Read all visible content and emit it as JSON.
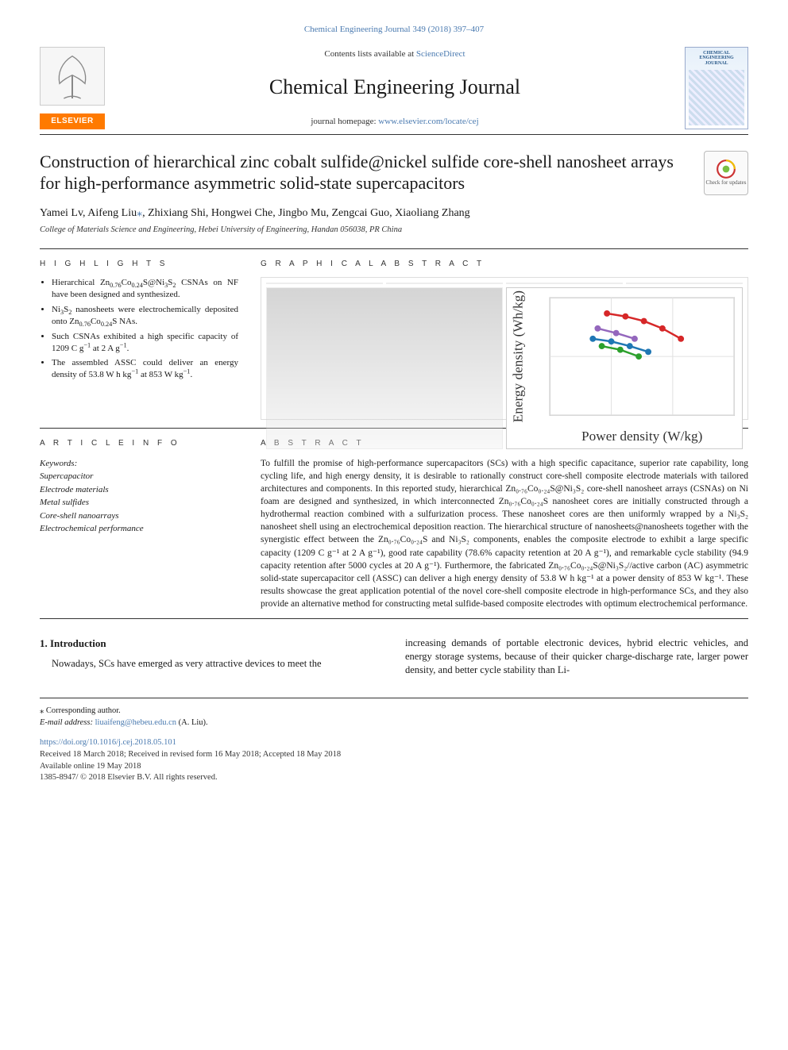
{
  "top_citation": "Chemical Engineering Journal 349 (2018) 397–407",
  "masthead": {
    "contents_prefix": "Contents lists available at ",
    "contents_link": "ScienceDirect",
    "journal_name": "Chemical Engineering Journal",
    "homepage_prefix": "journal homepage: ",
    "homepage_url": "www.elsevier.com/locate/cej",
    "publisher_word": "ELSEVIER",
    "cover_text": "CHEMICAL ENGINEERING JOURNAL"
  },
  "check_updates_label": "Check for updates",
  "title": "Construction of hierarchical zinc cobalt sulfide@nickel sulfide core-shell nanosheet arrays for high-performance asymmetric solid-state supercapacitors",
  "authors_html": "Yamei Lv, Aifeng Liu<a class='corr-link' href='#'>⁎</a>, Zhixiang Shi, Hongwei Che, Jingbo Mu, Zengcai Guo, Xiaoliang Zhang",
  "affiliation": "College of Materials Science and Engineering, Hebei University of Engineering, Handan 056038, PR China",
  "labels": {
    "highlights": "H I G H L I G H T S",
    "graphical_abstract": "G R A P H I C A L  A B S T R A C T",
    "article_info": "A R T I C L E  I N F O",
    "abstract": "A B S T R A C T"
  },
  "highlights": [
    "Hierarchical Zn<sub>0.76</sub>Co<sub>0.24</sub>S@Ni<sub>3</sub>S<sub>2</sub> CSNAs on NF have been designed and synthesized.",
    "Ni<sub>3</sub>S<sub>2</sub> nanosheets were electrochemically deposited onto Zn<sub>0.76</sub>Co<sub>0.24</sub>S NAs.",
    "Such CSNAs exhibited a high specific capacity of 1209 C g<sup>−1</sup> at 2 A g<sup>−1</sup>.",
    "The assembled ASSC could deliver an energy density of 53.8 W h kg<sup>−1</sup> at 853 W kg<sup>−1</sup>."
  ],
  "graphical_abstract_chart": {
    "type": "scatter-line",
    "xlabel": "Power density (W/kg)",
    "ylabel": "Energy density (Wh/kg)",
    "xscale": "log",
    "yscale": "log",
    "xlim": [
      100,
      100000
    ],
    "ylim": [
      1,
      100
    ],
    "series": [
      {
        "color": "#d62728",
        "marker": "circle",
        "points": [
          [
            850,
            54
          ],
          [
            1700,
            48
          ],
          [
            3400,
            40
          ],
          [
            6800,
            30
          ],
          [
            13600,
            20
          ]
        ]
      },
      {
        "color": "#1f77b4",
        "marker": "square",
        "points": [
          [
            500,
            20
          ],
          [
            1000,
            18
          ],
          [
            2000,
            15
          ],
          [
            4000,
            12
          ]
        ]
      },
      {
        "color": "#2ca02c",
        "marker": "triangle",
        "points": [
          [
            700,
            15
          ],
          [
            1400,
            13
          ],
          [
            2800,
            10
          ]
        ]
      },
      {
        "color": "#9467bd",
        "marker": "diamond",
        "points": [
          [
            600,
            30
          ],
          [
            1200,
            25
          ],
          [
            2400,
            20
          ]
        ]
      }
    ],
    "background_color": "#ffffff",
    "grid_color": "#e0e0e0",
    "label_fontsize": 7
  },
  "article_info": {
    "keywords_label": "Keywords:",
    "keywords": [
      "Supercapacitor",
      "Electrode materials",
      "Metal sulfides",
      "Core-shell nanoarrays",
      "Electrochemical performance"
    ]
  },
  "abstract": "To fulfill the promise of high-performance supercapacitors (SCs) with a high specific capacitance, superior rate capability, long cycling life, and high energy density, it is desirable to rationally construct core-shell composite electrode materials with tailored architectures and components. In this reported study, hierarchical Zn₀.₇₆Co₀.₂₄S@Ni₃S₂ core-shell nanosheet arrays (CSNAs) on Ni foam are designed and synthesized, in which interconnected Zn₀.₇₆Co₀.₂₄S nanosheet cores are initially constructed through a hydrothermal reaction combined with a sulfurization process. These nanosheet cores are then uniformly wrapped by a Ni₃S₂ nanosheet shell using an electrochemical deposition reaction. The hierarchical structure of nanosheets@nanosheets together with the synergistic effect between the Zn₀.₇₆Co₀.₂₄S and Ni₃S₂ components, enables the composite electrode to exhibit a large specific capacity (1209 C g⁻¹ at 2 A g⁻¹), good rate capability (78.6% capacity retention at 20 A g⁻¹), and remarkable cycle stability (94.9 capacity retention after 5000 cycles at 20 A g⁻¹). Furthermore, the fabricated Zn₀.₇₆Co₀.₂₄S@Ni₃S₂//active carbon (AC) asymmetric solid-state supercapacitor cell (ASSC) can deliver a high energy density of 53.8 W h kg⁻¹ at a power density of 853 W kg⁻¹. These results showcase the great application potential of the novel core-shell composite electrode in high-performance SCs, and they also provide an alternative method for constructing metal sulfide-based composite electrodes with optimum electrochemical performance.",
  "introduction": {
    "heading": "1. Introduction",
    "col1": "Nowadays, SCs have emerged as very attractive devices to meet the",
    "col2": "increasing demands of portable electronic devices, hybrid electric vehicles, and energy storage systems, because of their quicker charge-discharge rate, larger power density, and better cycle stability than Li-"
  },
  "footnotes": {
    "corr": "⁎ Corresponding author.",
    "email_label": "E-mail address: ",
    "email": "liuaifeng@hebeu.edu.cn",
    "email_suffix": " (A. Liu)."
  },
  "doi_block": {
    "doi": "https://doi.org/10.1016/j.cej.2018.05.101",
    "history": "Received 18 March 2018; Received in revised form 16 May 2018; Accepted 18 May 2018",
    "online": "Available online 19 May 2018",
    "copyright": "1385-8947/ © 2018 Elsevier B.V. All rights reserved."
  },
  "colors": {
    "link": "#4a7ab0",
    "elsevier_orange": "#ff7a00",
    "rule": "#333333"
  }
}
